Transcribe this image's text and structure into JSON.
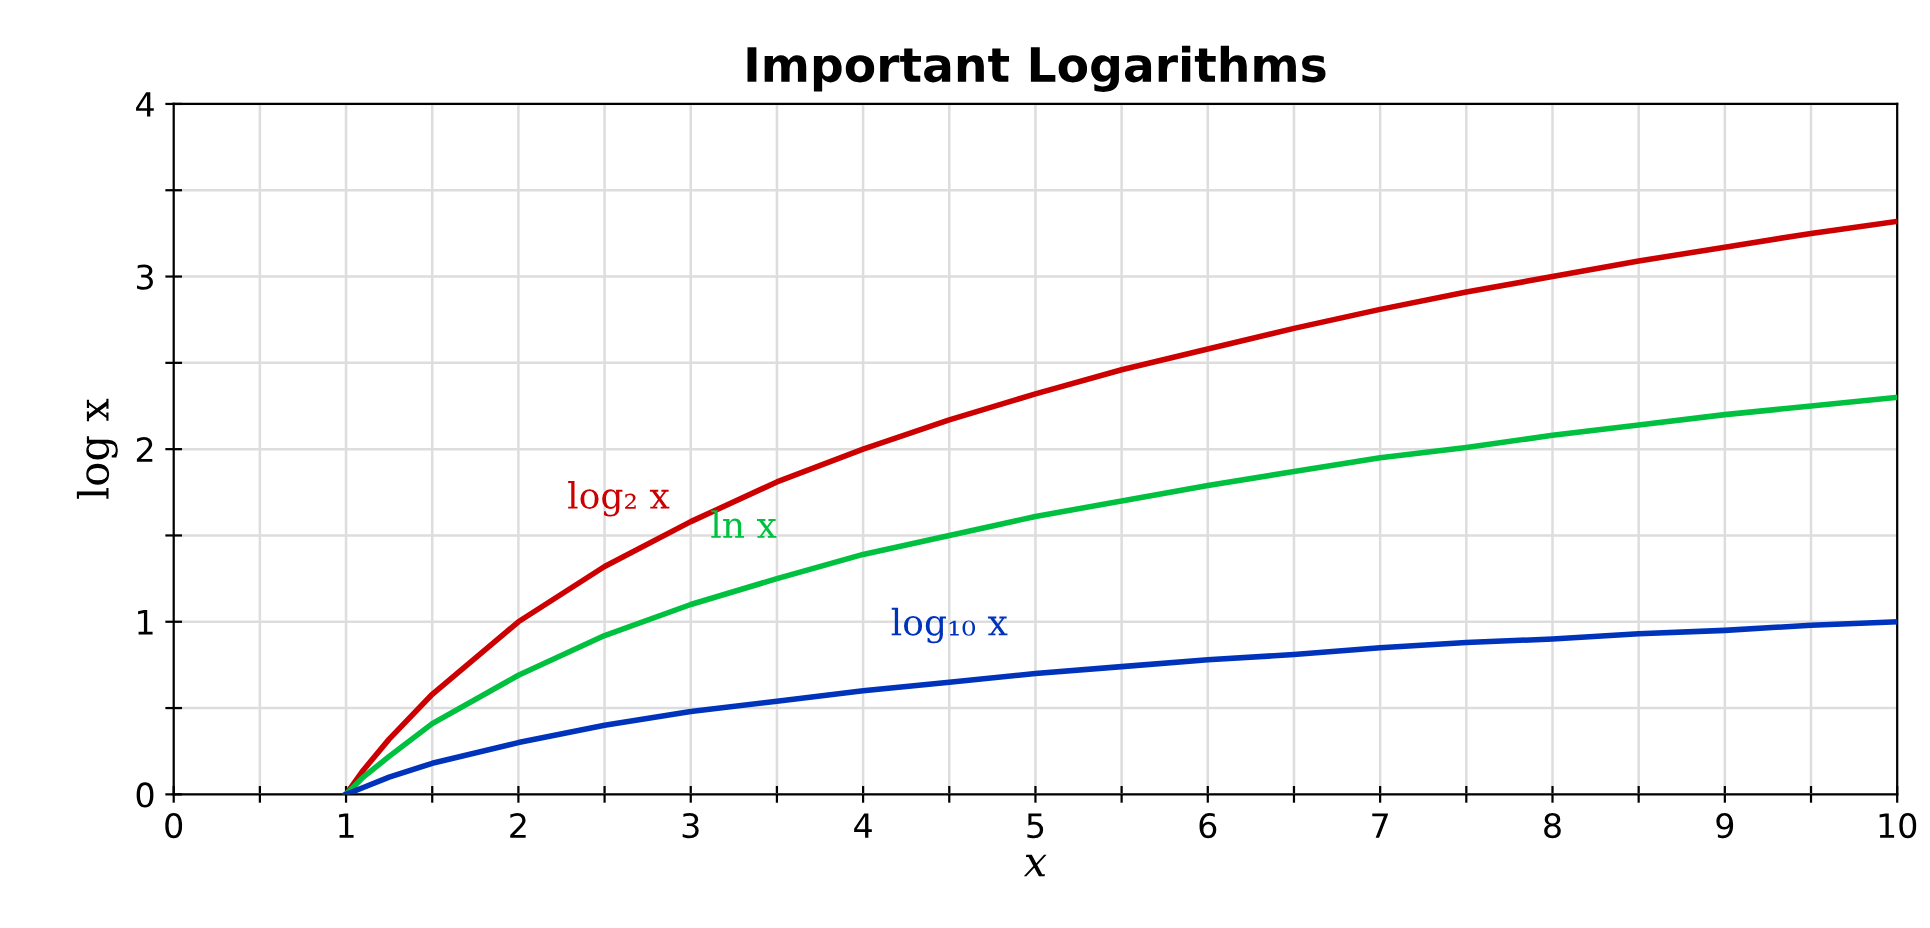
{
  "chart_data": {
    "type": "line",
    "title": "Important Logarithms",
    "xlabel": "x",
    "ylabel": "log x",
    "x": [
      1,
      1.1,
      1.25,
      1.5,
      2,
      2.5,
      3,
      3.5,
      4,
      4.5,
      5,
      5.5,
      6,
      6.5,
      7,
      7.5,
      8,
      8.5,
      9,
      9.5,
      10
    ],
    "series": [
      {
        "name": "log₂ x",
        "color": "#cc0000",
        "values": [
          0,
          0.14,
          0.32,
          0.58,
          1,
          1.32,
          1.58,
          1.81,
          2,
          2.17,
          2.32,
          2.46,
          2.58,
          2.7,
          2.81,
          2.91,
          3,
          3.09,
          3.17,
          3.25,
          3.32
        ]
      },
      {
        "name": "ln x",
        "color": "#00c040",
        "values": [
          0,
          0.1,
          0.22,
          0.41,
          0.69,
          0.92,
          1.1,
          1.25,
          1.39,
          1.5,
          1.61,
          1.7,
          1.79,
          1.87,
          1.95,
          2.01,
          2.08,
          2.14,
          2.2,
          2.25,
          2.3
        ]
      },
      {
        "name": "log₁₀ x",
        "color": "#0033bb",
        "values": [
          0,
          0.04,
          0.1,
          0.18,
          0.3,
          0.4,
          0.48,
          0.54,
          0.6,
          0.65,
          0.7,
          0.74,
          0.78,
          0.81,
          0.85,
          0.88,
          0.9,
          0.93,
          0.95,
          0.98,
          1.0
        ]
      }
    ],
    "xlim": [
      0,
      10
    ],
    "ylim": [
      0,
      4
    ],
    "xticks": [
      0,
      {
        "value": 0.5,
        "label": null
      },
      1,
      {
        "value": 1.5,
        "label": null
      },
      2,
      {
        "value": 2.5,
        "label": null
      },
      3,
      {
        "value": 3.5,
        "label": null
      },
      4,
      {
        "value": 4.5,
        "label": null
      },
      5,
      {
        "value": 5.5,
        "label": null
      },
      6,
      {
        "value": 6.5,
        "label": null
      },
      7,
      {
        "value": 7.5,
        "label": null
      },
      8,
      {
        "value": 8.5,
        "label": null
      },
      9,
      {
        "value": 9.5,
        "label": null
      },
      10
    ],
    "yticks": [
      0,
      {
        "value": 0.5,
        "label": null
      },
      1,
      {
        "value": 1.5,
        "label": null
      },
      2,
      {
        "value": 2.5,
        "label": null
      },
      3,
      {
        "value": 3.5,
        "label": null
      },
      4
    ],
    "grid": true,
    "legend": false,
    "marker": "none",
    "line_style": "solid"
  }
}
